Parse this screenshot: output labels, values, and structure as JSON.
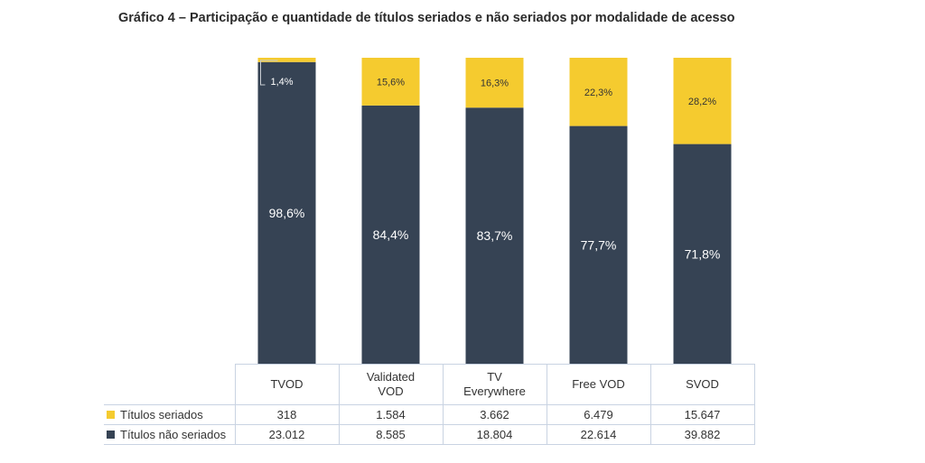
{
  "title": "Gráfico 4 – Participação e quantidade de títulos seriados e não seriados por modalidade de acesso",
  "colors": {
    "seriados": "#f5cb2f",
    "nao_seriados": "#364354"
  },
  "chart_data": {
    "type": "bar",
    "stacked": true,
    "normalized": true,
    "ylim": [
      0,
      100
    ],
    "categories": [
      "TVOD",
      "Validated\nVOD",
      "TV\nEverywhere",
      "Free VOD",
      "SVOD"
    ],
    "series": [
      {
        "name": "Títulos não seriados",
        "values": [
          98.6,
          84.4,
          83.7,
          77.7,
          71.8
        ],
        "labels": [
          "98,6%",
          "84,4%",
          "83,7%",
          "77,7%",
          "71,8%"
        ],
        "counts": [
          "23.012",
          "8.585",
          "18.804",
          "22.614",
          "39.882"
        ]
      },
      {
        "name": "Títulos seriados",
        "values": [
          1.4,
          15.6,
          16.3,
          22.3,
          28.2
        ],
        "labels": [
          "1,4%",
          "15,6%",
          "16,3%",
          "22,3%",
          "28,2%"
        ],
        "counts": [
          "318",
          "1.584",
          "3.662",
          "6.479",
          "15.647"
        ]
      }
    ]
  }
}
